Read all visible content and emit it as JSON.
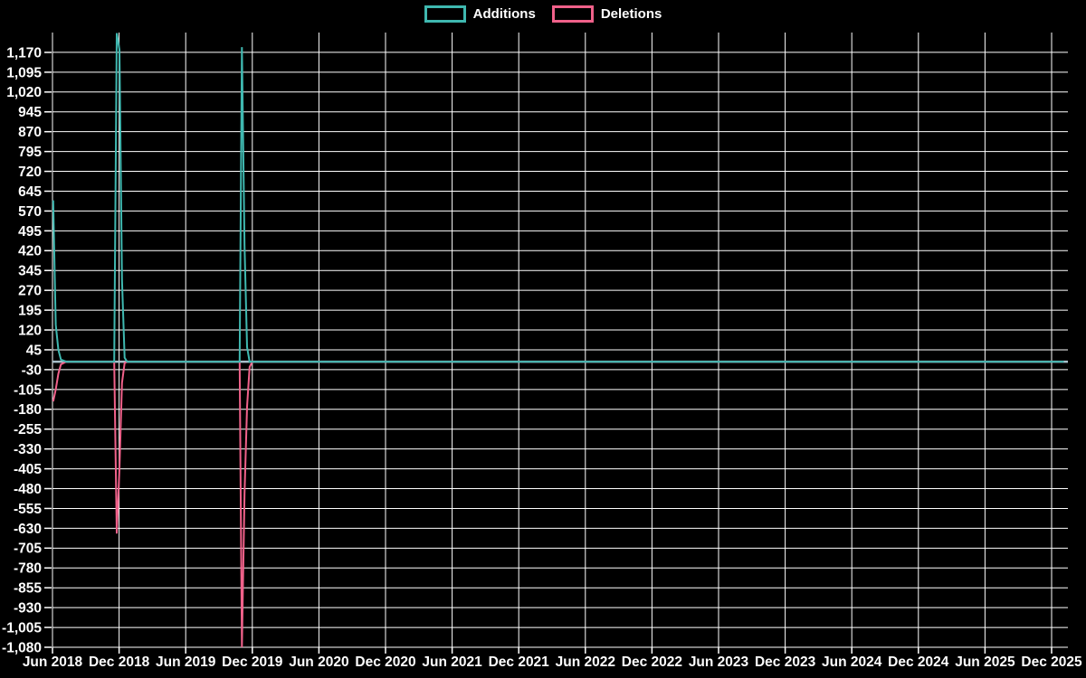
{
  "chart_data": {
    "type": "line",
    "title": "",
    "background_color": "#000000",
    "grid": {
      "show": true,
      "color": "#ffffff"
    },
    "axis_text_color": "#ffffff",
    "zero_line_color": "#a7bfca",
    "legend_position": "top-center",
    "x_tick_labels": [
      "Jun 2018",
      "Dec 2018",
      "Jun 2019",
      "Dec 2019",
      "Jun 2020",
      "Dec 2020",
      "Jun 2021",
      "Dec 2021",
      "Jun 2022",
      "Dec 2022",
      "Jun 2023",
      "Dec 2023",
      "Jun 2024",
      "Dec 2024",
      "Jun 2025",
      "Dec 2025"
    ],
    "y_axis": {
      "min": -1080,
      "max": 1245,
      "tick_step": 75,
      "first_label": -1080,
      "last_label": 1170
    },
    "y_tick_labels": [
      "1,170",
      "1,095",
      "1,020",
      "945",
      "870",
      "795",
      "720",
      "645",
      "570",
      "495",
      "420",
      "345",
      "270",
      "195",
      "120",
      "45",
      "-30",
      "-105",
      "-180",
      "-255",
      "-330",
      "-405",
      "-480",
      "-555",
      "-630",
      "-705",
      "-780",
      "-855",
      "-930",
      "-1,005",
      "-1,080"
    ],
    "series": [
      {
        "name": "Additions",
        "color": "#3fb8b0",
        "points": [
          [
            "2018-06-03",
            610
          ],
          [
            "2018-06-10",
            140
          ],
          [
            "2018-06-17",
            45
          ],
          [
            "2018-06-24",
            8
          ],
          [
            "2018-07-08",
            0
          ],
          [
            "2018-11-18",
            0
          ],
          [
            "2018-11-25",
            1243
          ],
          [
            "2018-12-02",
            1180
          ],
          [
            "2018-12-09",
            310
          ],
          [
            "2018-12-16",
            15
          ],
          [
            "2018-12-23",
            0
          ],
          [
            "2019-10-27",
            0
          ],
          [
            "2019-11-03",
            1190
          ],
          [
            "2019-11-10",
            440
          ],
          [
            "2019-11-17",
            55
          ],
          [
            "2019-11-24",
            0
          ],
          [
            "2026-01-04",
            0
          ]
        ]
      },
      {
        "name": "Deletions",
        "color": "#f0618a",
        "points": [
          [
            "2018-06-03",
            -150
          ],
          [
            "2018-06-10",
            -105
          ],
          [
            "2018-06-17",
            -45
          ],
          [
            "2018-06-24",
            -10
          ],
          [
            "2018-07-08",
            0
          ],
          [
            "2018-11-18",
            0
          ],
          [
            "2018-11-25",
            -650
          ],
          [
            "2018-12-02",
            -405
          ],
          [
            "2018-12-09",
            -80
          ],
          [
            "2018-12-16",
            -5
          ],
          [
            "2018-12-23",
            0
          ],
          [
            "2019-10-27",
            0
          ],
          [
            "2019-11-03",
            -1080
          ],
          [
            "2019-11-10",
            -500
          ],
          [
            "2019-11-17",
            -170
          ],
          [
            "2019-11-24",
            -20
          ],
          [
            "2019-12-01",
            0
          ],
          [
            "2026-01-04",
            0
          ]
        ]
      }
    ]
  }
}
